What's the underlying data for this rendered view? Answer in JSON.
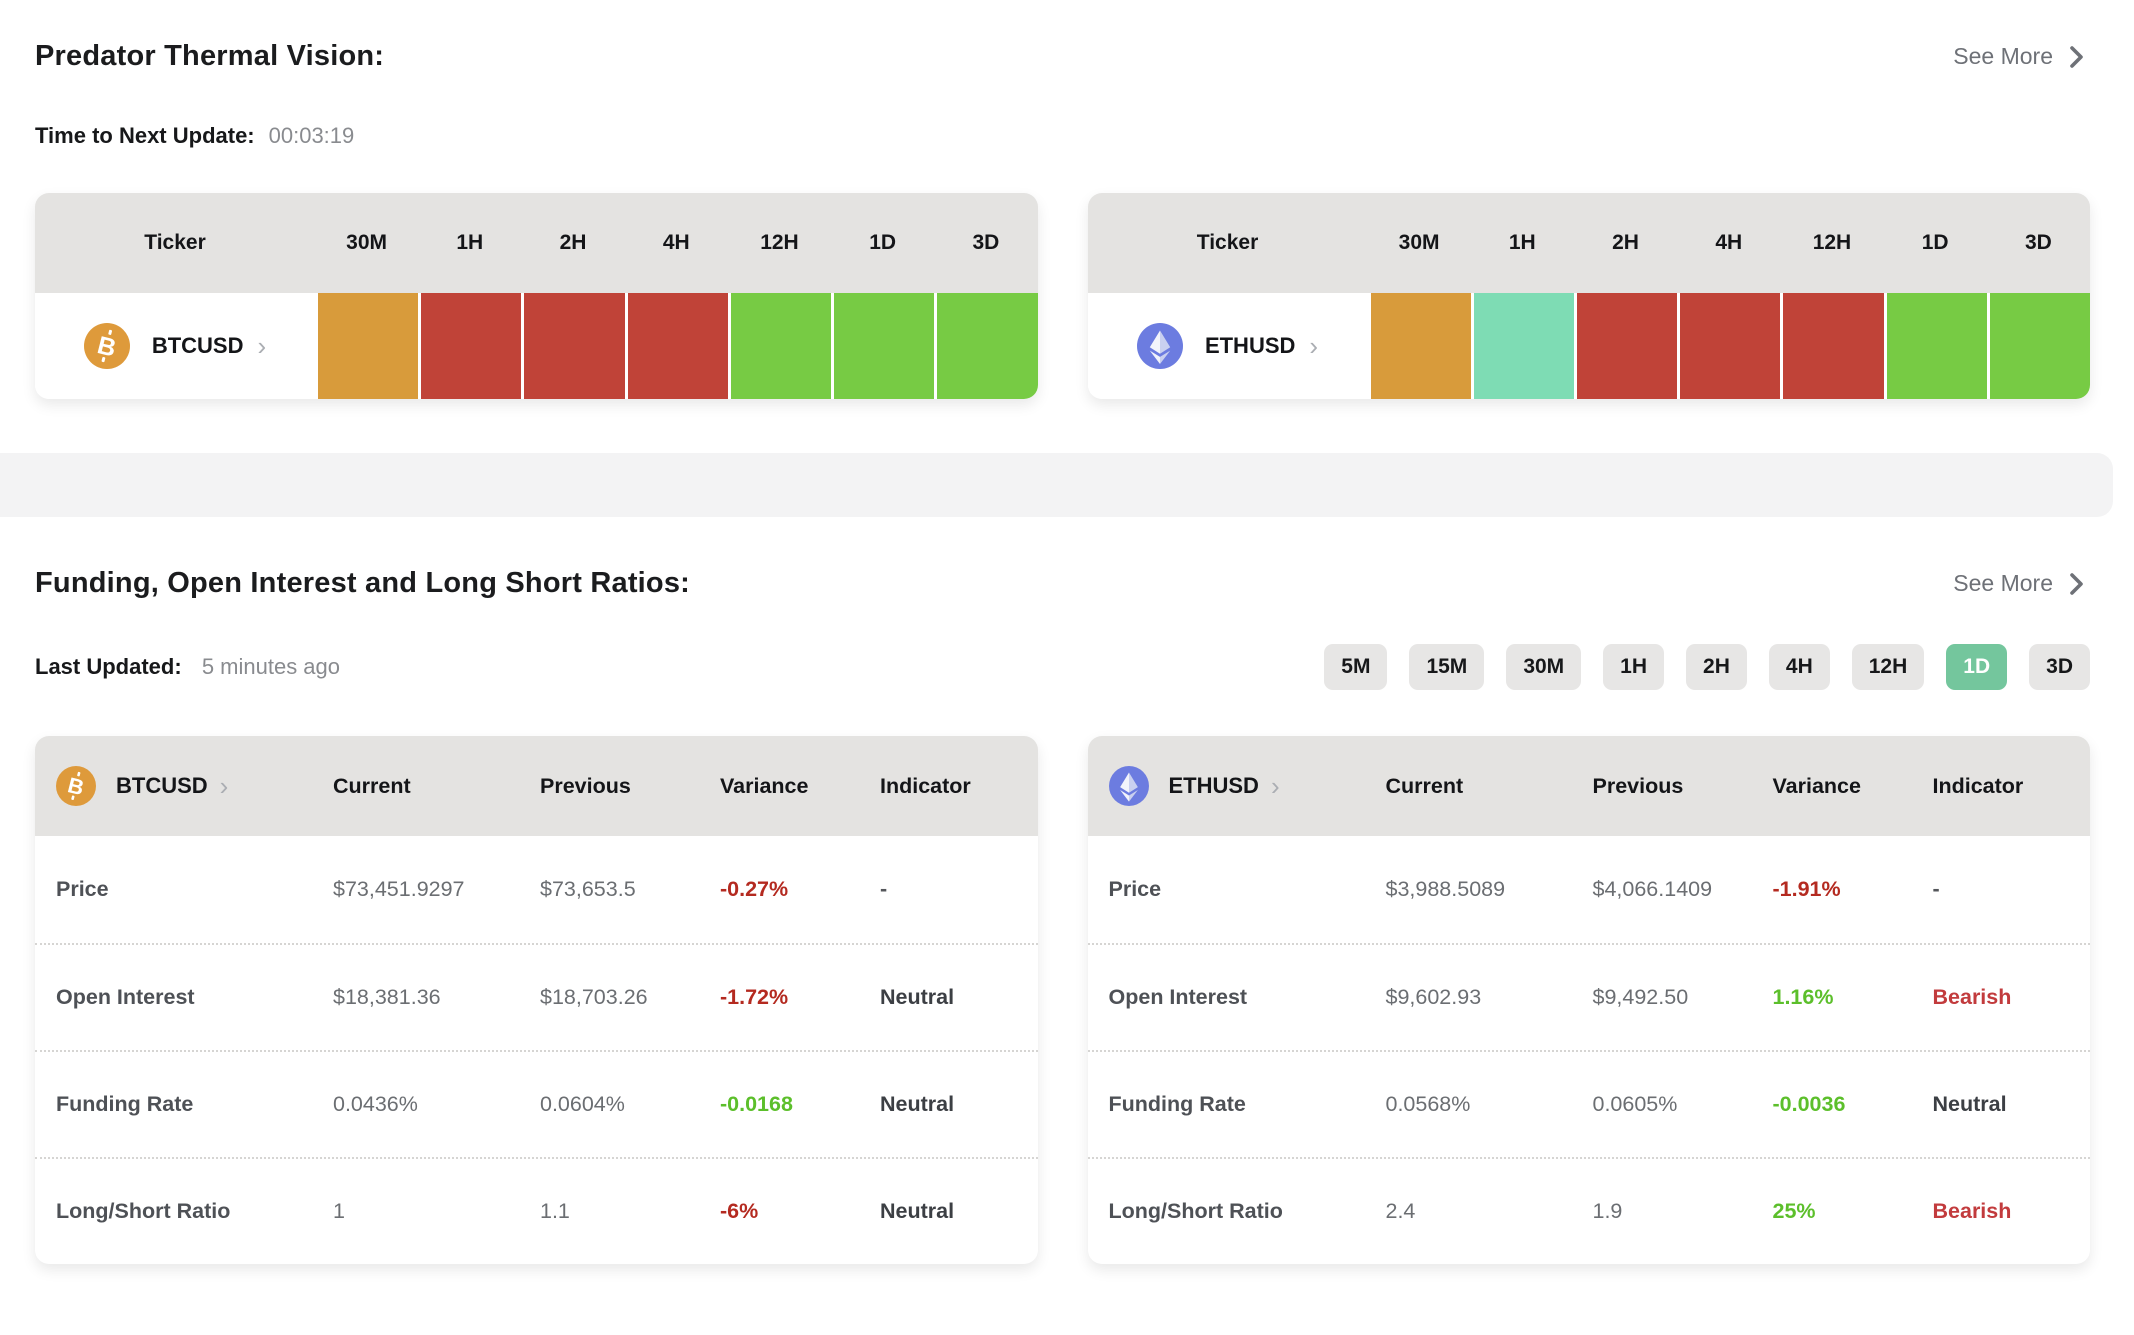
{
  "theme": {
    "accent-green": "#74C69D",
    "heat-orange": "#D89B3B",
    "heat-red": "#C04338",
    "heat-green": "#77CB44",
    "heat-teal": "#7EDCB4",
    "variance-red": "#B42A20",
    "variance-green": "#5CBF2B",
    "bearish-red": "#C23B3D",
    "btc-orange": "#DE9A3B",
    "eth-blue": "#6C7CE0"
  },
  "thermal": {
    "title": "Predator Thermal Vision:",
    "see_more_label": "See More",
    "update_label": "Time to Next Update:",
    "update_value": "00:03:19",
    "columns": [
      "Ticker",
      "30M",
      "1H",
      "2H",
      "4H",
      "12H",
      "1D",
      "3D"
    ],
    "rows": [
      {
        "ticker": "BTCUSD",
        "icon": "bitcoin-icon",
        "cells": [
          "heat-orange",
          "heat-red",
          "heat-red",
          "heat-red",
          "heat-green",
          "heat-green",
          "heat-green"
        ]
      },
      {
        "ticker": "ETHUSD",
        "icon": "ethereum-icon",
        "cells": [
          "heat-orange",
          "heat-teal",
          "heat-red",
          "heat-red",
          "heat-red",
          "heat-green",
          "heat-green"
        ]
      }
    ]
  },
  "funding": {
    "title": "Funding, Open Interest and Long Short Ratios:",
    "see_more_label": "See More",
    "updated_label": "Last Updated:",
    "updated_value": "5 minutes ago",
    "timeframes": [
      "5M",
      "15M",
      "30M",
      "1H",
      "2H",
      "4H",
      "12H",
      "1D",
      "3D"
    ],
    "active_timeframe": "1D",
    "columns": [
      "Current",
      "Previous",
      "Variance",
      "Indicator"
    ],
    "tables": [
      {
        "ticker": "BTCUSD",
        "icon": "bitcoin-icon",
        "rows": [
          {
            "label": "Price",
            "current": "$73,451.9297",
            "previous": "$73,653.5",
            "variance": "-0.27%",
            "variance_color": "red",
            "indicator": "-",
            "indicator_style": "muted"
          },
          {
            "label": "Open Interest",
            "current": "$18,381.36",
            "previous": "$18,703.26",
            "variance": "-1.72%",
            "variance_color": "red",
            "indicator": "Neutral",
            "indicator_style": "dark"
          },
          {
            "label": "Funding Rate",
            "current": "0.0436%",
            "previous": "0.0604%",
            "variance": "-0.0168",
            "variance_color": "green",
            "indicator": "Neutral",
            "indicator_style": "dark"
          },
          {
            "label": "Long/Short Ratio",
            "current": "1",
            "previous": "1.1",
            "variance": "-6%",
            "variance_color": "red",
            "indicator": "Neutral",
            "indicator_style": "dark"
          }
        ]
      },
      {
        "ticker": "ETHUSD",
        "icon": "ethereum-icon",
        "rows": [
          {
            "label": "Price",
            "current": "$3,988.5089",
            "previous": "$4,066.1409",
            "variance": "-1.91%",
            "variance_color": "red",
            "indicator": "-",
            "indicator_style": "muted"
          },
          {
            "label": "Open Interest",
            "current": "$9,602.93",
            "previous": "$9,492.50",
            "variance": "1.16%",
            "variance_color": "green",
            "indicator": "Bearish",
            "indicator_style": "red"
          },
          {
            "label": "Funding Rate",
            "current": "0.0568%",
            "previous": "0.0605%",
            "variance": "-0.0036",
            "variance_color": "green",
            "indicator": "Neutral",
            "indicator_style": "dark"
          },
          {
            "label": "Long/Short Ratio",
            "current": "2.4",
            "previous": "1.9",
            "variance": "25%",
            "variance_color": "green",
            "indicator": "Bearish",
            "indicator_style": "red"
          }
        ]
      }
    ]
  }
}
